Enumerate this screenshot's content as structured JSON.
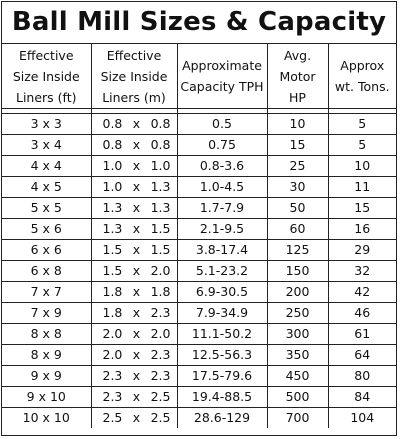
{
  "title": "Ball Mill Sizes & Capacity",
  "headers": {
    "size_ft": [
      "Effective",
      "Size Inside",
      "Liners (ft)"
    ],
    "size_m": [
      "Effective",
      "Size Inside",
      "Liners (m)"
    ],
    "capacity": [
      "Approximate",
      "Capacity TPH"
    ],
    "motor": [
      "Avg.",
      "Motor",
      "HP"
    ],
    "weight": [
      "Approx",
      "wt. Tons."
    ]
  },
  "rows": [
    {
      "ft": "3 x 3",
      "m1": "0.8",
      "mx": "x",
      "m2": "0.8",
      "tph": "0.5",
      "hp": "10",
      "tons": "5"
    },
    {
      "ft": "3 x 4",
      "m1": "0.8",
      "mx": "x",
      "m2": "0.8",
      "tph": "0.75",
      "hp": "15",
      "tons": "5"
    },
    {
      "ft": "4 x 4",
      "m1": "1.0",
      "mx": "x",
      "m2": "1.0",
      "tph": "0.8-3.6",
      "hp": "25",
      "tons": "10"
    },
    {
      "ft": "4 x 5",
      "m1": "1.0",
      "mx": "x",
      "m2": "1.3",
      "tph": "1.0-4.5",
      "hp": "30",
      "tons": "11"
    },
    {
      "ft": "5 x 5",
      "m1": "1.3",
      "mx": "x",
      "m2": "1.3",
      "tph": "1.7-7.9",
      "hp": "50",
      "tons": "15"
    },
    {
      "ft": "5 x 6",
      "m1": "1.3",
      "mx": "x",
      "m2": "1.5",
      "tph": "2.1-9.5",
      "hp": "60",
      "tons": "16"
    },
    {
      "ft": "6 x 6",
      "m1": "1.5",
      "mx": "x",
      "m2": "1.5",
      "tph": "3.8-17.4",
      "hp": "125",
      "tons": "29"
    },
    {
      "ft": "6 x 8",
      "m1": "1.5",
      "mx": "x",
      "m2": "2.0",
      "tph": "5.1-23.2",
      "hp": "150",
      "tons": "32"
    },
    {
      "ft": "7 x 7",
      "m1": "1.8",
      "mx": "x",
      "m2": "1.8",
      "tph": "6.9-30.5",
      "hp": "200",
      "tons": "42"
    },
    {
      "ft": "7 x 9",
      "m1": "1.8",
      "mx": "x",
      "m2": "2.3",
      "tph": "7.9-34.9",
      "hp": "250",
      "tons": "46"
    },
    {
      "ft": "8 x 8",
      "m1": "2.0",
      "mx": "x",
      "m2": "2.0",
      "tph": "11.1-50.2",
      "hp": "300",
      "tons": "61"
    },
    {
      "ft": "8 x 9",
      "m1": "2.0",
      "mx": "x",
      "m2": "2.3",
      "tph": "12.5-56.3",
      "hp": "350",
      "tons": "64"
    },
    {
      "ft": "9 x 9",
      "m1": "2.3",
      "mx": "x",
      "m2": "2.3",
      "tph": "17.5-79.6",
      "hp": "450",
      "tons": "80"
    },
    {
      "ft": "9 x 10",
      "m1": "2.3",
      "mx": "x",
      "m2": "2.5",
      "tph": "19.4-88.5",
      "hp": "500",
      "tons": "84"
    },
    {
      "ft": "10 x 10",
      "m1": "2.5",
      "mx": "x",
      "m2": "2.5",
      "tph": "28.6-129",
      "hp": "700",
      "tons": "104"
    }
  ]
}
